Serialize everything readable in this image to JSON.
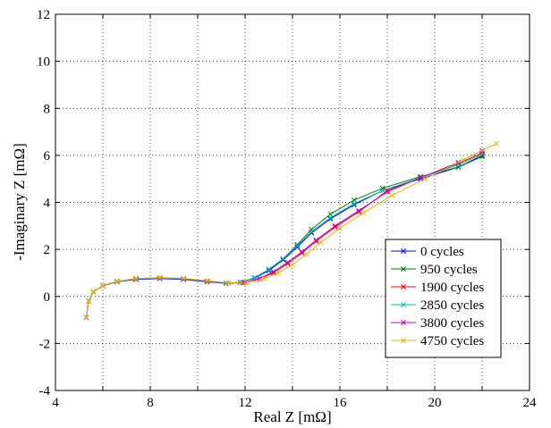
{
  "chart_data": {
    "type": "line",
    "xlabel": "Real Z [mΩ]",
    "ylabel": "-Imaginary Z [mΩ]",
    "xlim": [
      4,
      24
    ],
    "ylim": [
      -4,
      12
    ],
    "x_ticks": [
      4,
      6,
      8,
      10,
      12,
      14,
      16,
      18,
      20,
      22,
      24
    ],
    "x_tick_labels": [
      "4",
      "",
      "8",
      "",
      "12",
      "",
      "16",
      "",
      "20",
      "",
      "24"
    ],
    "x_tick_text": [
      "4",
      "8",
      "12",
      "16",
      "20",
      "24"
    ],
    "y_ticks": [
      -4,
      -2,
      0,
      2,
      4,
      6,
      8,
      10,
      12
    ],
    "y_tick_labels": [
      "-4",
      "-2",
      "0",
      "2",
      "4",
      "6",
      "8",
      "10",
      "12"
    ],
    "grid": true,
    "legend_position": "lower-right",
    "series": [
      {
        "name": "0 cycles",
        "color": "#0000ff",
        "points": [
          [
            5.3,
            -0.9
          ],
          [
            5.4,
            -0.2
          ],
          [
            5.6,
            0.2
          ],
          [
            6.0,
            0.45
          ],
          [
            6.6,
            0.62
          ],
          [
            7.4,
            0.72
          ],
          [
            8.4,
            0.76
          ],
          [
            9.4,
            0.72
          ],
          [
            10.4,
            0.62
          ],
          [
            11.2,
            0.55
          ],
          [
            11.8,
            0.6
          ],
          [
            12.4,
            0.78
          ],
          [
            13.0,
            1.1
          ],
          [
            13.6,
            1.55
          ],
          [
            14.2,
            2.1
          ],
          [
            14.8,
            2.7
          ],
          [
            15.6,
            3.3
          ],
          [
            16.6,
            3.9
          ],
          [
            17.8,
            4.5
          ],
          [
            19.4,
            5.0
          ],
          [
            21.0,
            5.5
          ],
          [
            22.0,
            6.0
          ]
        ]
      },
      {
        "name": "950 cycles",
        "color": "#008000",
        "points": [
          [
            5.3,
            -0.9
          ],
          [
            5.4,
            -0.2
          ],
          [
            5.6,
            0.2
          ],
          [
            6.0,
            0.45
          ],
          [
            6.6,
            0.63
          ],
          [
            7.4,
            0.74
          ],
          [
            8.4,
            0.78
          ],
          [
            9.4,
            0.74
          ],
          [
            10.4,
            0.64
          ],
          [
            11.2,
            0.56
          ],
          [
            11.8,
            0.6
          ],
          [
            12.4,
            0.8
          ],
          [
            13.0,
            1.15
          ],
          [
            13.6,
            1.6
          ],
          [
            14.2,
            2.2
          ],
          [
            14.8,
            2.85
          ],
          [
            15.6,
            3.5
          ],
          [
            16.6,
            4.1
          ],
          [
            17.8,
            4.6
          ],
          [
            19.4,
            5.1
          ],
          [
            21.0,
            5.5
          ],
          [
            22.0,
            5.95
          ]
        ]
      },
      {
        "name": "1900 cycles",
        "color": "#ff0000",
        "points": [
          [
            5.3,
            -0.9
          ],
          [
            5.4,
            -0.2
          ],
          [
            5.6,
            0.2
          ],
          [
            6.0,
            0.46
          ],
          [
            6.6,
            0.64
          ],
          [
            7.4,
            0.75
          ],
          [
            8.4,
            0.79
          ],
          [
            9.4,
            0.75
          ],
          [
            10.4,
            0.65
          ],
          [
            11.2,
            0.56
          ],
          [
            11.9,
            0.58
          ],
          [
            12.5,
            0.72
          ],
          [
            13.2,
            1.0
          ],
          [
            13.8,
            1.4
          ],
          [
            14.4,
            1.85
          ],
          [
            15.0,
            2.35
          ],
          [
            15.8,
            2.95
          ],
          [
            16.8,
            3.6
          ],
          [
            18.0,
            4.5
          ],
          [
            19.4,
            5.05
          ],
          [
            21.0,
            5.65
          ],
          [
            22.0,
            6.1
          ]
        ]
      },
      {
        "name": "2850 cycles",
        "color": "#00c0c0",
        "points": [
          [
            5.3,
            -0.9
          ],
          [
            5.4,
            -0.2
          ],
          [
            5.6,
            0.2
          ],
          [
            6.0,
            0.46
          ],
          [
            6.6,
            0.64
          ],
          [
            7.4,
            0.75
          ],
          [
            8.4,
            0.79
          ],
          [
            9.4,
            0.75
          ],
          [
            10.4,
            0.65
          ],
          [
            11.2,
            0.56
          ],
          [
            11.8,
            0.6
          ],
          [
            12.4,
            0.8
          ],
          [
            13.0,
            1.15
          ],
          [
            13.6,
            1.6
          ],
          [
            14.2,
            2.15
          ],
          [
            14.8,
            2.75
          ],
          [
            15.6,
            3.35
          ],
          [
            16.6,
            3.95
          ],
          [
            17.8,
            4.5
          ],
          [
            19.4,
            5.05
          ],
          [
            21.0,
            5.6
          ],
          [
            22.0,
            6.05
          ]
        ]
      },
      {
        "name": "3800 cycles",
        "color": "#c000c0",
        "points": [
          [
            5.3,
            -0.9
          ],
          [
            5.4,
            -0.2
          ],
          [
            5.6,
            0.2
          ],
          [
            6.0,
            0.46
          ],
          [
            6.6,
            0.64
          ],
          [
            7.4,
            0.76
          ],
          [
            8.4,
            0.8
          ],
          [
            9.4,
            0.76
          ],
          [
            10.4,
            0.66
          ],
          [
            11.3,
            0.57
          ],
          [
            12.0,
            0.6
          ],
          [
            12.6,
            0.76
          ],
          [
            13.2,
            1.05
          ],
          [
            13.8,
            1.45
          ],
          [
            14.4,
            1.9
          ],
          [
            15.0,
            2.4
          ],
          [
            15.8,
            3.0
          ],
          [
            16.8,
            3.65
          ],
          [
            18.0,
            4.45
          ],
          [
            19.4,
            5.05
          ],
          [
            21.0,
            5.7
          ],
          [
            22.0,
            6.2
          ]
        ]
      },
      {
        "name": "4750 cycles",
        "color": "#e6b800",
        "points": [
          [
            5.3,
            -0.9
          ],
          [
            5.4,
            -0.2
          ],
          [
            5.6,
            0.2
          ],
          [
            6.0,
            0.46
          ],
          [
            6.6,
            0.64
          ],
          [
            7.4,
            0.76
          ],
          [
            8.4,
            0.8
          ],
          [
            9.4,
            0.77
          ],
          [
            10.4,
            0.67
          ],
          [
            11.3,
            0.58
          ],
          [
            12.1,
            0.6
          ],
          [
            12.8,
            0.75
          ],
          [
            13.4,
            1.0
          ],
          [
            14.0,
            1.35
          ],
          [
            14.6,
            1.8
          ],
          [
            15.2,
            2.3
          ],
          [
            16.0,
            2.9
          ],
          [
            17.0,
            3.55
          ],
          [
            18.2,
            4.3
          ],
          [
            19.6,
            5.0
          ],
          [
            21.2,
            5.8
          ],
          [
            22.6,
            6.5
          ]
        ]
      }
    ]
  }
}
